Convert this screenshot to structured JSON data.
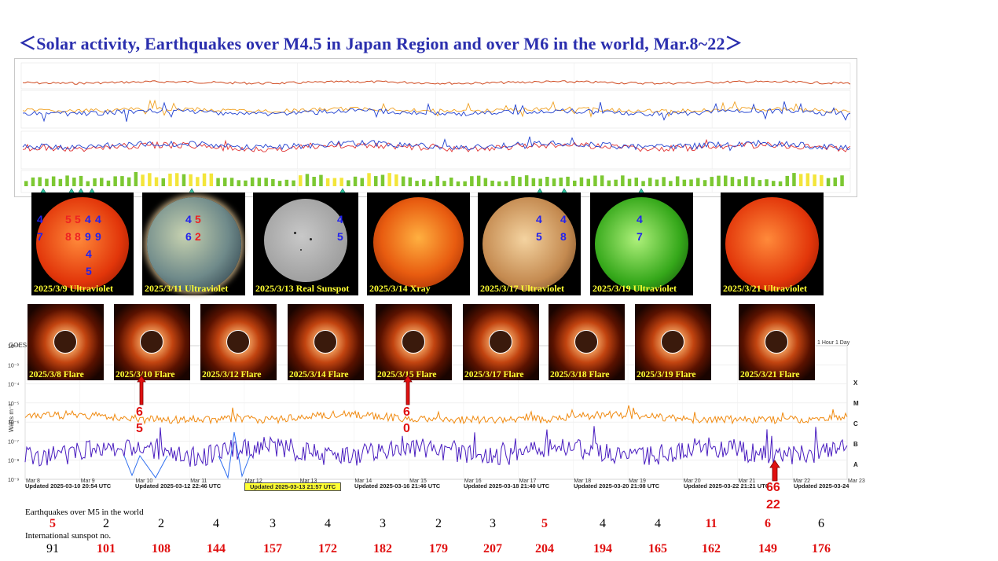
{
  "title": "＜Solar activity, Earthquakes over M4.5 in Japan Region and over M6 in the world, Mar.8~22＞",
  "sun_images": [
    {
      "caption": "2025/3/9 Ultraviolet",
      "kind": "uv-red"
    },
    {
      "caption": "2025/3/11 Ultraviolet",
      "kind": "uv-blue"
    },
    {
      "caption": "2025/3/13 Real Sunspot",
      "kind": "gray"
    },
    {
      "caption": "2025/3/14 Xray",
      "kind": "xray"
    },
    {
      "caption": "2025/3/17 Ultraviolet",
      "kind": "uv-tan"
    },
    {
      "caption": "2025/3/19 Ultraviolet",
      "kind": "uv-green"
    },
    {
      "caption": "2025/3/21 Ultraviolet",
      "kind": "uv-red"
    }
  ],
  "coronagraph_images": [
    {
      "caption": "2025/3/8 Flare"
    },
    {
      "caption": "2025/3/10 Flare"
    },
    {
      "caption": "2025/3/12 Flare"
    },
    {
      "caption": "2025/3/14 Flare"
    },
    {
      "caption": "2025/3/15 Flare"
    },
    {
      "caption": "2025/3/17 Flare"
    },
    {
      "caption": "2025/3/18 Flare"
    },
    {
      "caption": "2025/3/19 Flare"
    },
    {
      "caption": "2025/3/21 Flare"
    }
  ],
  "quake_markers": {
    "m1_blue": "4",
    "m1_blue2": "7",
    "m2_red": "5",
    "m2_red2": "8",
    "m3_red": "5",
    "m3_red2": "8",
    "m4_blue": "4",
    "m4_blue2": "9",
    "m5_blue": "4",
    "m5_blue2": "9",
    "m5_blue3": "4",
    "m5_blue4": "5",
    "m6_blue": "4",
    "m6_blue2": "6",
    "m7_red": "5",
    "m7_red2": "2",
    "m8_blue": "4",
    "m8_blue2": "5",
    "m9_blue": "4",
    "m9_blue2": "5",
    "m10_blue": "4",
    "m10_blue2": "8",
    "m11_blue": "4",
    "m11_blue2": "7",
    "world1_a": "6",
    "world1_b": "5",
    "world2_a": "6",
    "world2_b": "0",
    "world3_a": "66",
    "world3_b": "22"
  },
  "goes_chart": {
    "y_labels": [
      "10⁻²",
      "10⁻³",
      "10⁻⁴",
      "10⁻⁵",
      "10⁻⁶",
      "10⁻⁷",
      "10⁻⁸",
      "10⁻⁹"
    ],
    "class_labels": [
      "X",
      "M",
      "C",
      "B",
      "A"
    ],
    "ylabel": "Watts m⁻²",
    "x_labels": [
      "Mar 8",
      "Mar 9",
      "Mar 10",
      "Mar 11",
      "Mar 12",
      "Mar 13",
      "Mar 14",
      "Mar 15",
      "Mar 16",
      "Mar 17",
      "Mar 18",
      "Mar 19",
      "Mar 20",
      "Mar 21",
      "Mar 22",
      "Mar 23"
    ],
    "updated": [
      "Updated 2025-03-10 20:54 UTC",
      "Updated 2025-03-12 22:46 UTC",
      "Updated 2025-03-13 21:57 UTC",
      "Updated 2025-03-16 21:46 UTC",
      "Updated 2025-03-18 21:40 UTC",
      "Updated 2025-03-20 21:08 UTC",
      "Updated 2025-03-22 21:21 UTC",
      "Updated 2025-03-24"
    ],
    "corner_label": "1 Hour 1 Day",
    "goes_label": "GOES"
  },
  "table": {
    "eq_label": "Earthquakes over M5 in the world",
    "eq_values": [
      "5",
      "2",
      "2",
      "4",
      "3",
      "4",
      "3",
      "2",
      "3",
      "5",
      "4",
      "4",
      "11",
      "6",
      "6"
    ],
    "eq_red": [
      true,
      false,
      false,
      false,
      false,
      false,
      false,
      false,
      false,
      true,
      false,
      false,
      true,
      true,
      false
    ],
    "ss_label": "International sunspot no.",
    "ss_values": [
      "91",
      "101",
      "108",
      "144",
      "157",
      "172",
      "182",
      "179",
      "207",
      "204",
      "194",
      "165",
      "162",
      "149",
      "176"
    ],
    "ss_red": [
      false,
      true,
      true,
      true,
      true,
      true,
      true,
      true,
      true,
      true,
      true,
      true,
      true,
      true,
      true
    ]
  },
  "chart_data": {
    "type": "bar",
    "title": "",
    "categories": [
      "Mar 8",
      "Mar 9",
      "Mar 10",
      "Mar 11",
      "Mar 12",
      "Mar 13",
      "Mar 14",
      "Mar 15",
      "Mar 16",
      "Mar 17",
      "Mar 18",
      "Mar 19",
      "Mar 20",
      "Mar 21",
      "Mar 22"
    ],
    "series": [
      {
        "name": "Earthquakes over M5 in the world",
        "values": [
          5,
          2,
          2,
          4,
          3,
          4,
          3,
          2,
          3,
          5,
          4,
          4,
          11,
          6,
          6
        ]
      },
      {
        "name": "International sunspot no.",
        "values": [
          91,
          101,
          108,
          144,
          157,
          172,
          182,
          179,
          207,
          204,
          194,
          165,
          162,
          149,
          176
        ]
      }
    ],
    "kp_bars": {
      "colors": {
        "green": "#7cc832",
        "yellow": "#f3e53a"
      }
    }
  },
  "colors": {
    "title": "#2b2fae",
    "caption": "#ffff33",
    "red": "#e01010",
    "blue": "#2222ee",
    "arrow_green": "#2ec4a0"
  }
}
